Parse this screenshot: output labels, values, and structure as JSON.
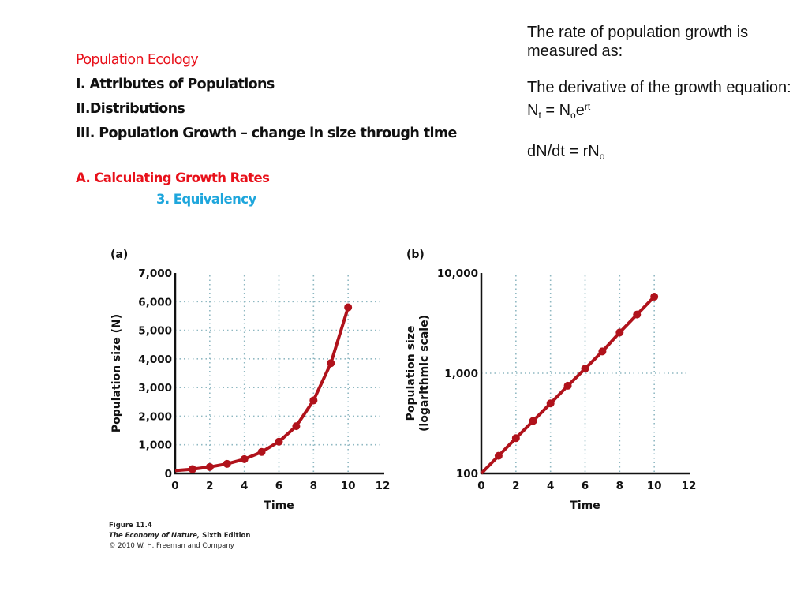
{
  "outline": {
    "title": "Population Ecology",
    "item1": "I. Attributes of Populations",
    "item2": "II.Distributions",
    "item3": "III. Population Growth – change in size through time",
    "subA": "A. Calculating Growth Rates",
    "sub3": "3. Equivalency"
  },
  "explanation": {
    "line1": "The rate of population growth is measured as:",
    "line2_prefix": "The derivative of the growth equation: ",
    "eq_N": "N",
    "eq_t": "t",
    "eq_eq": " = N",
    "eq_o": "o",
    "eq_e": "e",
    "eq_rt": "rt",
    "deriv_prefix": "dN/dt = rN",
    "deriv_o": "o"
  },
  "caption": {
    "figure": "Figure 11.4",
    "book": "The Economy of Nature,",
    "edition": " Sixth Edition",
    "copyright": "© 2010 W. H. Freeman and Company"
  },
  "colors": {
    "series": "#b0121b",
    "grid": "#8fb8c2",
    "title_red": "#e8101a",
    "sub_cyan": "#1ea6dc"
  },
  "chart_data": [
    {
      "type": "line",
      "panel": "(a)",
      "xlabel": "Time",
      "ylabel": "Population size (N)",
      "xlim": [
        0,
        12
      ],
      "ylim": [
        0,
        7000
      ],
      "xticks": [
        "0",
        "2",
        "4",
        "6",
        "8",
        "10",
        "12"
      ],
      "yticks": [
        "0",
        "1,000",
        "2,000",
        "3,000",
        "4,000",
        "5,000",
        "6,000",
        "7,000"
      ],
      "grid": true,
      "x": [
        0,
        1,
        2,
        3,
        4,
        5,
        6,
        7,
        8,
        9,
        10
      ],
      "y": [
        100,
        150,
        225,
        335,
        500,
        750,
        1110,
        1650,
        2550,
        3850,
        5800
      ]
    },
    {
      "type": "line",
      "panel": "(b)",
      "xlabel": "Time",
      "ylabel": "Population size (logarithmic scale)",
      "ylabel_line1": "Population size",
      "ylabel_line2": "(logarithmic scale)",
      "yscale": "log",
      "xlim": [
        0,
        12
      ],
      "ylim": [
        100,
        10000
      ],
      "xticks": [
        "0",
        "2",
        "4",
        "6",
        "8",
        "10",
        "12"
      ],
      "yticks": [
        "100",
        "1,000",
        "10,000"
      ],
      "grid": true,
      "x": [
        0,
        1,
        2,
        3,
        4,
        5,
        6,
        7,
        8,
        9,
        10
      ],
      "y": [
        100,
        150,
        225,
        335,
        500,
        750,
        1110,
        1650,
        2550,
        3850,
        5800
      ]
    }
  ]
}
